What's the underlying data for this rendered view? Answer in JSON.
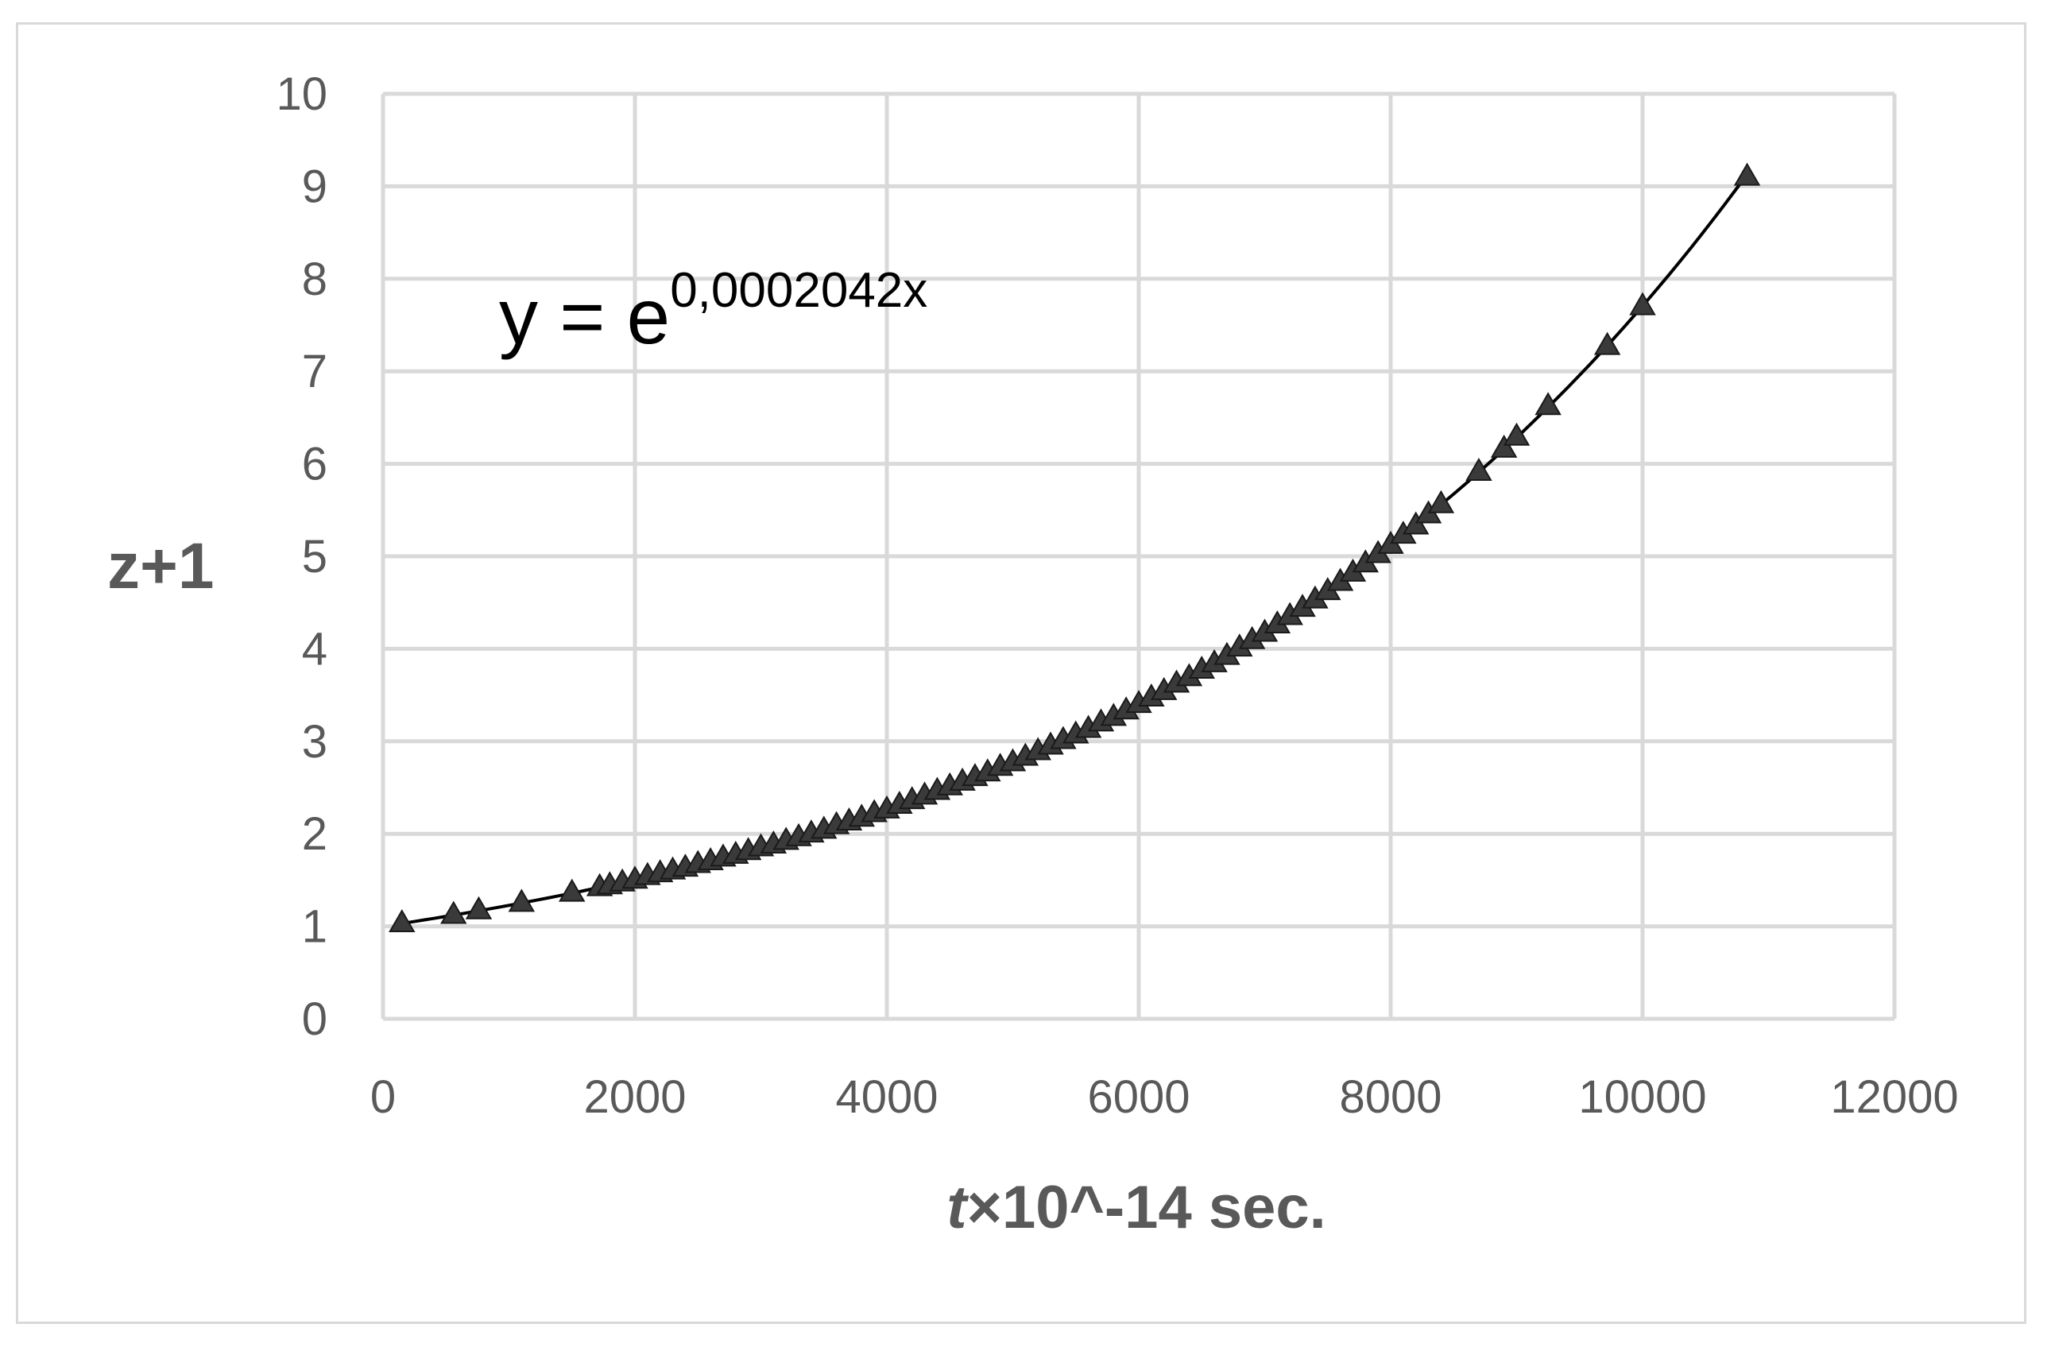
{
  "chart_data": {
    "type": "scatter",
    "title": "",
    "xlabel_italic": "t",
    "xlabel_rest": "×10^-14 sec.",
    "ylabel": "z+1",
    "xlim": [
      0,
      12000
    ],
    "ylim": [
      0,
      10
    ],
    "x_ticks": [
      0,
      2000,
      4000,
      6000,
      8000,
      10000,
      12000
    ],
    "y_ticks": [
      0,
      1,
      2,
      3,
      4,
      5,
      6,
      7,
      8,
      9,
      10
    ],
    "grid": true,
    "legend": "none",
    "annotation": {
      "base": "y = e",
      "exponent": "0,0002042x"
    },
    "trendline": {
      "type": "exponential",
      "coefficient": 0.0002042,
      "x_range": [
        150,
        10830
      ]
    },
    "series": [
      {
        "marker": "triangle",
        "x": [
          150,
          560,
          760,
          1100,
          1500,
          1720,
          1800,
          1900,
          2000,
          2100,
          2200,
          2300,
          2400,
          2500,
          2600,
          2700,
          2800,
          2900,
          3000,
          3100,
          3200,
          3300,
          3400,
          3500,
          3600,
          3700,
          3800,
          3900,
          4000,
          4100,
          4200,
          4300,
          4400,
          4500,
          4600,
          4700,
          4800,
          4900,
          5000,
          5100,
          5200,
          5300,
          5400,
          5500,
          5600,
          5700,
          5800,
          5900,
          6000,
          6100,
          6200,
          6300,
          6400,
          6500,
          6600,
          6700,
          6800,
          6900,
          7000,
          7100,
          7200,
          7300,
          7400,
          7500,
          7600,
          7700,
          7800,
          7900,
          8000,
          8100,
          8200,
          8300,
          8400,
          8700,
          8900,
          9000,
          9250,
          9720,
          10000,
          10830
        ],
        "y": [
          1.03,
          1.12,
          1.17,
          1.25,
          1.36,
          1.42,
          1.44,
          1.47,
          1.5,
          1.54,
          1.57,
          1.6,
          1.63,
          1.67,
          1.7,
          1.74,
          1.77,
          1.81,
          1.85,
          1.88,
          1.92,
          1.96,
          2.0,
          2.04,
          2.09,
          2.13,
          2.17,
          2.22,
          2.26,
          2.31,
          2.36,
          2.41,
          2.46,
          2.51,
          2.56,
          2.61,
          2.66,
          2.72,
          2.77,
          2.83,
          2.89,
          2.95,
          3.01,
          3.07,
          3.13,
          3.2,
          3.26,
          3.33,
          3.4,
          3.47,
          3.54,
          3.62,
          3.69,
          3.77,
          3.84,
          3.92,
          4.01,
          4.09,
          4.17,
          4.26,
          4.35,
          4.44,
          4.53,
          4.62,
          4.72,
          4.82,
          4.92,
          5.02,
          5.12,
          5.23,
          5.33,
          5.45,
          5.56,
          5.91,
          6.16,
          6.29,
          6.62,
          7.27,
          7.7,
          9.1
        ]
      }
    ]
  }
}
